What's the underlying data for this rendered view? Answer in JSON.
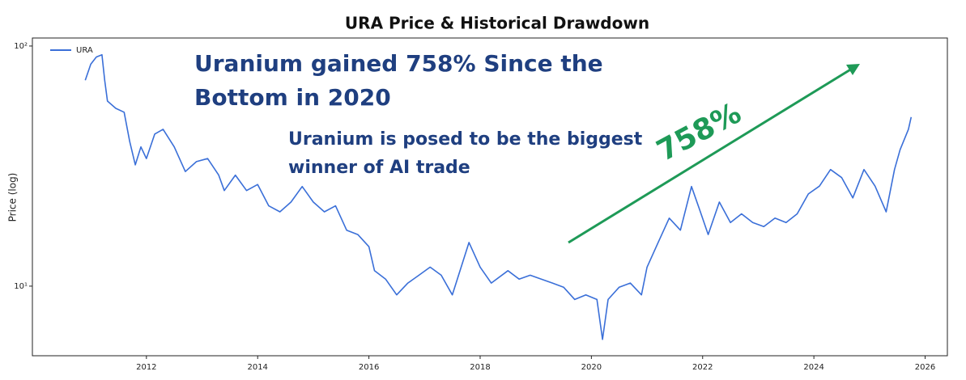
{
  "chart_data": {
    "type": "line",
    "title": "URA Price & Historical Drawdown",
    "y_label": "Price (log)",
    "log_scale": true,
    "grid": false,
    "legend": "upper left",
    "annotations": [
      [
        "Uranium gained 758% Since the",
        "Bottom in 2020"
      ],
      [
        "Uranium is posed to be the biggest",
        "winner of AI trade"
      ],
      "758%"
    ],
    "xlim": [
      2009.95,
      2026.4
    ],
    "xticks": [
      2012,
      2014,
      2016,
      2018,
      2020,
      2022,
      2024,
      2026
    ],
    "ylim": [
      5.13,
      108
    ],
    "yticks": [
      {
        "value": 10,
        "label": "10¹"
      },
      {
        "value": 100,
        "label": "10²"
      }
    ],
    "series": [
      {
        "name": "URA",
        "color": "#3a6fd8",
        "x": [
          2010.9,
          2011.0,
          2011.1,
          2011.2,
          2011.25,
          2011.3,
          2011.45,
          2011.6,
          2011.7,
          2011.8,
          2011.9,
          2012.0,
          2012.15,
          2012.3,
          2012.5,
          2012.7,
          2012.9,
          2013.1,
          2013.3,
          2013.4,
          2013.6,
          2013.8,
          2014.0,
          2014.2,
          2014.4,
          2014.6,
          2014.8,
          2015.0,
          2015.2,
          2015.4,
          2015.6,
          2015.8,
          2016.0,
          2016.1,
          2016.3,
          2016.5,
          2016.7,
          2016.9,
          2017.1,
          2017.3,
          2017.5,
          2017.8,
          2018.0,
          2018.2,
          2018.5,
          2018.7,
          2018.9,
          2019.1,
          2019.3,
          2019.5,
          2019.7,
          2019.9,
          2020.1,
          2020.2,
          2020.3,
          2020.5,
          2020.7,
          2020.9,
          2021.0,
          2021.2,
          2021.4,
          2021.6,
          2021.8,
          2021.95,
          2022.1,
          2022.3,
          2022.5,
          2022.7,
          2022.9,
          2023.1,
          2023.3,
          2023.5,
          2023.7,
          2023.9,
          2024.1,
          2024.3,
          2024.5,
          2024.7,
          2024.9,
          2025.1,
          2025.3,
          2025.45,
          2025.55,
          2025.7,
          2025.75
        ],
        "values": [
          72,
          84,
          90,
          92,
          72,
          59,
          55,
          53,
          40,
          32,
          38,
          34,
          43,
          45,
          38,
          30,
          33,
          34,
          29,
          25,
          29,
          25,
          26.5,
          21.6,
          20.4,
          22.4,
          26,
          22.4,
          20.4,
          21.6,
          17.1,
          16.4,
          14.6,
          11.6,
          10.7,
          9.2,
          10.3,
          11.1,
          12.0,
          11.1,
          9.2,
          15.2,
          12.0,
          10.3,
          11.6,
          10.7,
          11.1,
          10.7,
          10.3,
          9.9,
          8.8,
          9.2,
          8.8,
          6.0,
          8.8,
          9.9,
          10.3,
          9.2,
          12.0,
          15.2,
          19.2,
          17.1,
          26,
          20.7,
          16.4,
          22.4,
          18.4,
          20.0,
          18.4,
          17.7,
          19.2,
          18.4,
          20,
          24.2,
          26.1,
          30.6,
          28.3,
          23.3,
          30.6,
          26.1,
          20.4,
          30.6,
          37,
          45,
          50.6
        ]
      }
    ]
  }
}
